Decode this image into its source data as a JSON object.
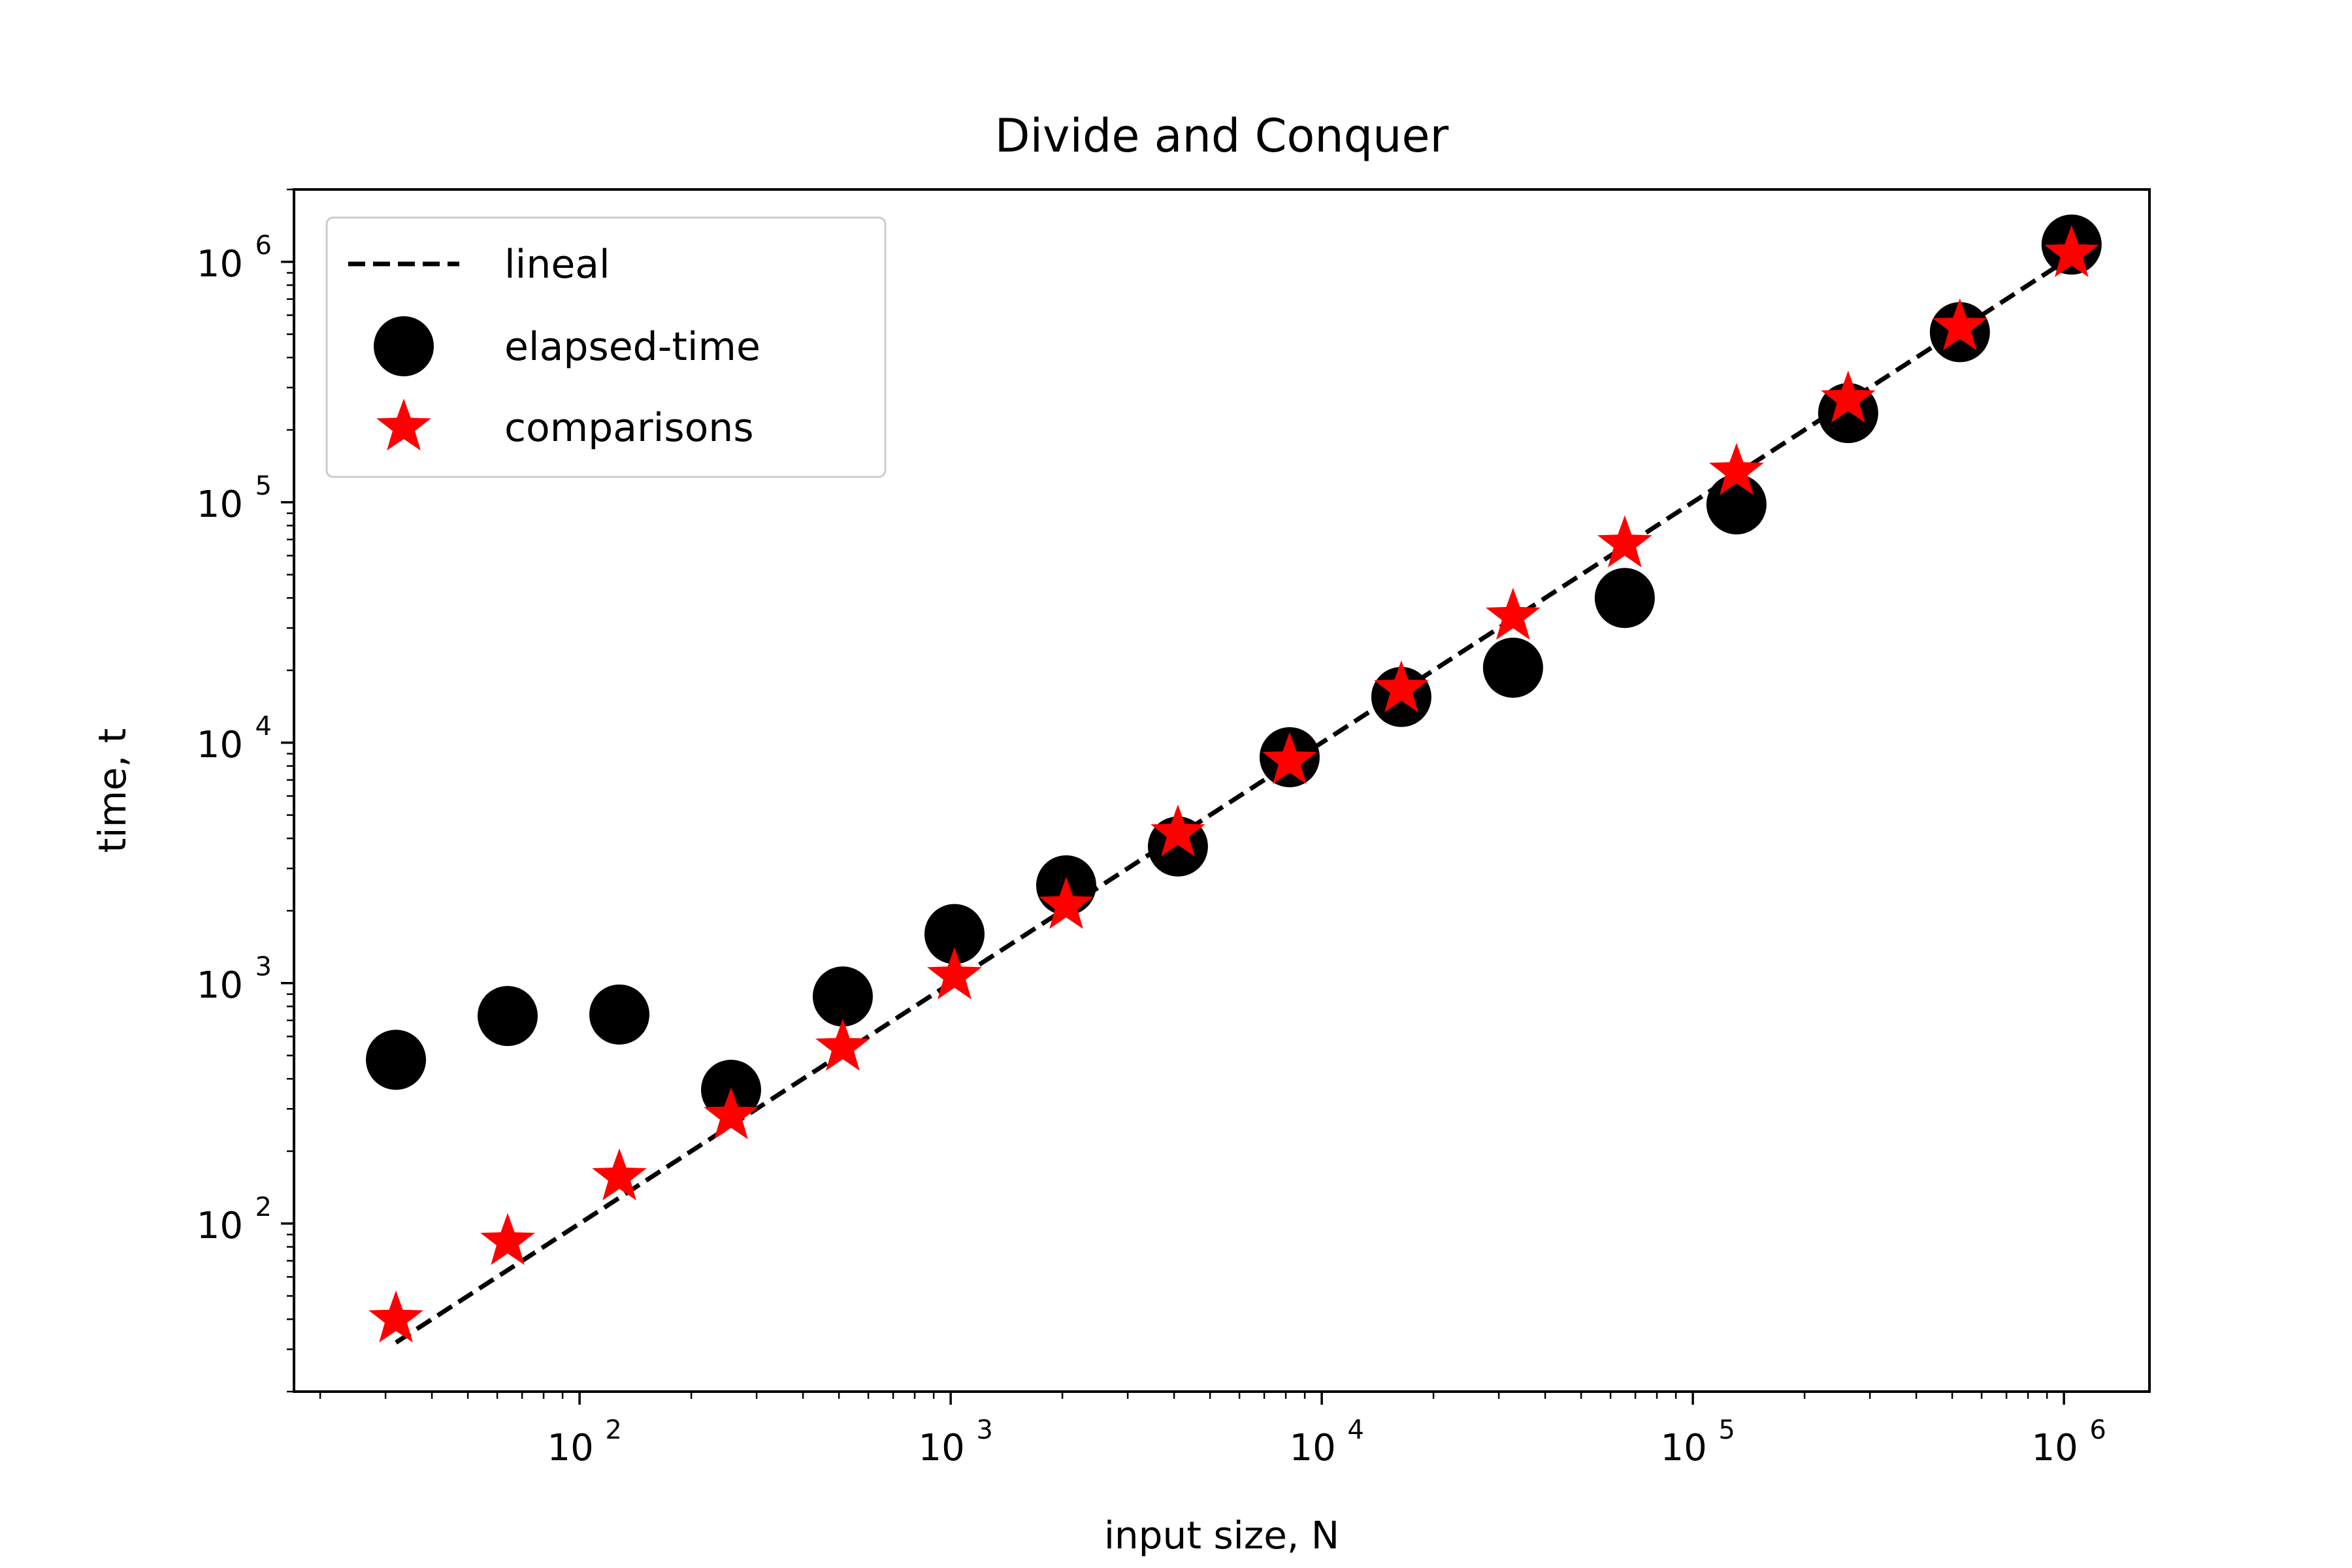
{
  "chart_data": {
    "type": "scatter",
    "title": "Divide and Conquer",
    "xlabel": "input size, N",
    "ylabel": "time, t",
    "xscale": "log",
    "yscale": "log",
    "xlim": [
      17,
      1700000
    ],
    "ylim": [
      20,
      2000000
    ],
    "x_ticks": [
      {
        "value": 100,
        "label": "10",
        "exp": "2"
      },
      {
        "value": 1000,
        "label": "10",
        "exp": "3"
      },
      {
        "value": 10000,
        "label": "10",
        "exp": "4"
      },
      {
        "value": 100000,
        "label": "10",
        "exp": "5"
      },
      {
        "value": 1000000,
        "label": "10",
        "exp": "6"
      }
    ],
    "y_ticks": [
      {
        "value": 100,
        "label": "10",
        "exp": "2"
      },
      {
        "value": 1000,
        "label": "10",
        "exp": "3"
      },
      {
        "value": 10000,
        "label": "10",
        "exp": "4"
      },
      {
        "value": 100000,
        "label": "10",
        "exp": "5"
      },
      {
        "value": 1000000,
        "label": "10",
        "exp": "6"
      }
    ],
    "grid": false,
    "legend_position": "top-left",
    "series": [
      {
        "name": "lineal",
        "kind": "line",
        "style": "dashed",
        "color": "#000000",
        "x": [
          32,
          1048576
        ],
        "y": [
          32,
          1048576
        ]
      },
      {
        "name": "elapsed-time",
        "kind": "scatter",
        "marker": "circle",
        "color": "#000000",
        "x": [
          32,
          64,
          128,
          256,
          512,
          1024,
          2048,
          4096,
          8192,
          16384,
          32768,
          65536,
          131072,
          262144,
          524288,
          1048576
        ],
        "y": [
          480,
          730,
          740,
          360,
          880,
          1600,
          2550,
          3700,
          8700,
          15500,
          20500,
          40000,
          98000,
          235000,
          510000,
          1180000
        ]
      },
      {
        "name": "comparisons",
        "kind": "scatter",
        "marker": "star",
        "color": "#ff0000",
        "x": [
          32,
          64,
          128,
          256,
          512,
          1024,
          2048,
          4096,
          8192,
          16384,
          32768,
          65536,
          131072,
          262144,
          524288,
          1048576
        ],
        "y": [
          40,
          84,
          156,
          280,
          540,
          1070,
          2100,
          4200,
          8400,
          16700,
          33500,
          67000,
          134000,
          268000,
          535000,
          1080000
        ]
      }
    ]
  }
}
